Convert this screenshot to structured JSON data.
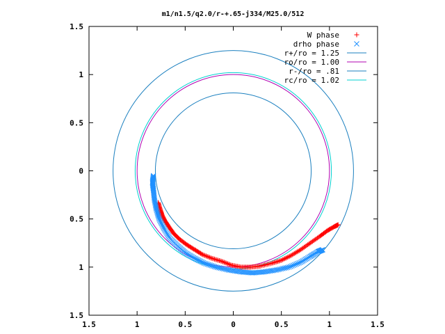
{
  "chart_data": {
    "type": "scatter",
    "title": "m1/n1.5/q2.0/r-+.65-j334/M25.0/512",
    "xlim": [
      -1.5,
      1.5
    ],
    "ylim": [
      -1.5,
      1.5
    ],
    "x_ticks": [
      "1.5",
      "1",
      "0.5",
      "0",
      "0.5",
      "1",
      "1.5"
    ],
    "x_tick_values": [
      -1.5,
      -1,
      -0.5,
      0,
      0.5,
      1,
      1.5
    ],
    "y_ticks": [
      "1.5",
      "1",
      "0.5",
      "0",
      "0.5",
      "1",
      "1.5"
    ],
    "y_tick_values": [
      1.5,
      1,
      0.5,
      0,
      -0.5,
      -1,
      -1.5
    ],
    "grid": false,
    "legend_position": "top-right",
    "series": [
      {
        "name": "W phase",
        "marker": "+",
        "color": "#ff0000",
        "points": [
          [
            -0.78,
            -0.33
          ],
          [
            -0.76,
            -0.4
          ],
          [
            -0.74,
            -0.46
          ],
          [
            -0.71,
            -0.52
          ],
          [
            -0.67,
            -0.58
          ],
          [
            -0.62,
            -0.65
          ],
          [
            -0.56,
            -0.71
          ],
          [
            -0.48,
            -0.77
          ],
          [
            -0.4,
            -0.82
          ],
          [
            -0.32,
            -0.87
          ],
          [
            -0.22,
            -0.91
          ],
          [
            -0.12,
            -0.94
          ],
          [
            -0.02,
            -0.98
          ],
          [
            0.08,
            -1.0
          ],
          [
            0.18,
            -1.0
          ],
          [
            0.28,
            -0.99
          ],
          [
            0.4,
            -0.96
          ],
          [
            0.5,
            -0.93
          ],
          [
            0.6,
            -0.88
          ],
          [
            0.7,
            -0.82
          ],
          [
            0.8,
            -0.75
          ],
          [
            0.9,
            -0.68
          ],
          [
            0.98,
            -0.62
          ],
          [
            1.05,
            -0.58
          ],
          [
            1.09,
            -0.56
          ]
        ]
      },
      {
        "name": "drho phase",
        "marker": "x",
        "color": "#1e90ff",
        "points": [
          [
            -0.83,
            -0.05
          ],
          [
            -0.84,
            -0.12
          ],
          [
            -0.83,
            -0.2
          ],
          [
            -0.82,
            -0.3
          ],
          [
            -0.8,
            -0.4
          ],
          [
            -0.77,
            -0.5
          ],
          [
            -0.72,
            -0.6
          ],
          [
            -0.66,
            -0.7
          ],
          [
            -0.58,
            -0.78
          ],
          [
            -0.5,
            -0.85
          ],
          [
            -0.4,
            -0.91
          ],
          [
            -0.3,
            -0.96
          ],
          [
            -0.18,
            -1.0
          ],
          [
            -0.05,
            -1.03
          ],
          [
            0.08,
            -1.05
          ],
          [
            0.2,
            -1.06
          ],
          [
            0.32,
            -1.05
          ],
          [
            0.45,
            -1.03
          ],
          [
            0.58,
            -1.0
          ],
          [
            0.7,
            -0.95
          ],
          [
            0.8,
            -0.89
          ],
          [
            0.88,
            -0.84
          ],
          [
            0.93,
            -0.82
          ]
        ]
      }
    ],
    "circles": [
      {
        "name": "r+/ro = 1.25",
        "radius": 1.25,
        "color": "#1a7fbf"
      },
      {
        "name": "ro/ro = 1.00",
        "radius": 1.0,
        "color": "#b000b0"
      },
      {
        "name": "r-/ro = .81",
        "radius": 0.81,
        "color": "#1a7fbf"
      },
      {
        "name": "rc/ro = 1.02",
        "radius": 1.02,
        "color": "#00d0d0"
      }
    ]
  }
}
